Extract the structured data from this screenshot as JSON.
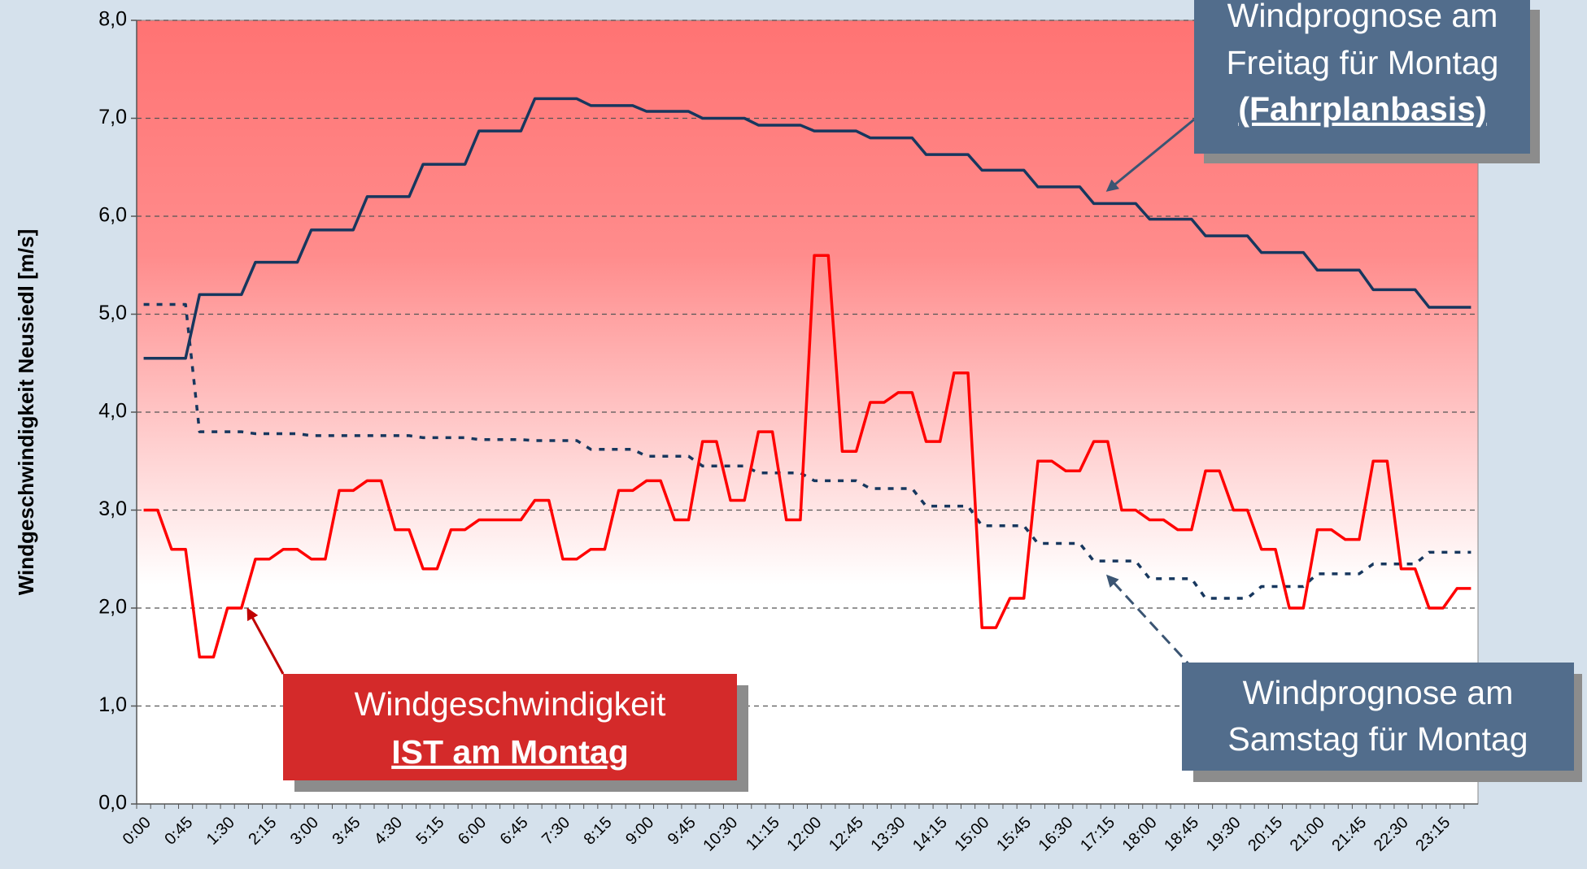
{
  "chart_data": {
    "type": "line",
    "y_label": "Windgeschwindigkeit Neusiedl [m/s]",
    "categories": [
      "0:00",
      null,
      null,
      "0:45",
      null,
      null,
      "1:30",
      null,
      null,
      "2:15",
      null,
      null,
      "3:00",
      null,
      null,
      "3:45",
      null,
      null,
      "4:30",
      null,
      null,
      "5:15",
      null,
      null,
      "6:00",
      null,
      null,
      "6:45",
      null,
      null,
      "7:30",
      null,
      null,
      "8:15",
      null,
      null,
      "9:00",
      null,
      null,
      "9:45",
      null,
      null,
      "10:30",
      null,
      null,
      "11:15",
      null,
      null,
      "12:00",
      null,
      null,
      "12:45",
      null,
      null,
      "13:30",
      null,
      null,
      "14:15",
      null,
      null,
      "15:00",
      null,
      null,
      "15:45",
      null,
      null,
      "16:30",
      null,
      null,
      "17:15",
      null,
      null,
      "18:00",
      null,
      null,
      "18:45",
      null,
      null,
      "19:30",
      null,
      null,
      "20:15",
      null,
      null,
      "21:00",
      null,
      null,
      "21:45",
      null,
      null,
      "22:30",
      null,
      null,
      "23:15",
      null,
      null
    ],
    "series": [
      {
        "color": "#ff0000",
        "style": "solid",
        "values": [
          3.0,
          3.0,
          2.6,
          2.6,
          1.5,
          1.5,
          2.0,
          2.0,
          2.5,
          2.5,
          2.6,
          2.6,
          2.5,
          2.5,
          3.2,
          3.2,
          3.3,
          3.3,
          2.8,
          2.8,
          2.4,
          2.4,
          2.8,
          2.8,
          2.9,
          2.9,
          2.9,
          2.9,
          3.1,
          3.1,
          2.5,
          2.5,
          2.6,
          2.6,
          3.2,
          3.2,
          3.3,
          3.3,
          2.9,
          2.9,
          3.7,
          3.7,
          3.1,
          3.1,
          3.8,
          3.8,
          2.9,
          2.9,
          5.6,
          5.6,
          3.6,
          3.6,
          4.1,
          4.1,
          4.2,
          4.2,
          3.7,
          3.7,
          4.4,
          4.4,
          1.8,
          1.8,
          2.1,
          2.1,
          3.5,
          3.5,
          3.4,
          3.4,
          3.7,
          3.7,
          3.0,
          3.0,
          2.9,
          2.9,
          2.8,
          2.8,
          3.4,
          3.4,
          3.0,
          3.0,
          2.6,
          2.6,
          2.0,
          2.0,
          2.8,
          2.8,
          2.7,
          2.7,
          3.5,
          3.5,
          2.4,
          2.4,
          2.0,
          2.0,
          2.2,
          2.2
        ]
      },
      {
        "color": "#17375e",
        "style": "solid",
        "values": [
          4.55,
          4.55,
          4.55,
          4.55,
          5.2,
          5.2,
          5.2,
          5.2,
          5.53,
          5.53,
          5.53,
          5.53,
          5.86,
          5.86,
          5.86,
          5.86,
          6.2,
          6.2,
          6.2,
          6.2,
          6.53,
          6.53,
          6.53,
          6.53,
          6.87,
          6.87,
          6.87,
          6.87,
          7.2,
          7.2,
          7.2,
          7.2,
          7.13,
          7.13,
          7.13,
          7.13,
          7.07,
          7.07,
          7.07,
          7.07,
          7.0,
          7.0,
          7.0,
          7.0,
          6.93,
          6.93,
          6.93,
          6.93,
          6.87,
          6.87,
          6.87,
          6.87,
          6.8,
          6.8,
          6.8,
          6.8,
          6.63,
          6.63,
          6.63,
          6.63,
          6.47,
          6.47,
          6.47,
          6.47,
          6.3,
          6.3,
          6.3,
          6.3,
          6.13,
          6.13,
          6.13,
          6.13,
          5.97,
          5.97,
          5.97,
          5.97,
          5.8,
          5.8,
          5.8,
          5.8,
          5.63,
          5.63,
          5.63,
          5.63,
          5.45,
          5.45,
          5.45,
          5.45,
          5.25,
          5.25,
          5.25,
          5.25,
          5.07,
          5.07,
          5.07,
          5.07
        ]
      },
      {
        "color": "#17375e",
        "style": "dashed",
        "values": [
          5.1,
          5.1,
          5.1,
          5.1,
          3.8,
          3.8,
          3.8,
          3.8,
          3.78,
          3.78,
          3.78,
          3.78,
          3.76,
          3.76,
          3.76,
          3.76,
          3.76,
          3.76,
          3.76,
          3.76,
          3.74,
          3.74,
          3.74,
          3.74,
          3.72,
          3.72,
          3.72,
          3.72,
          3.71,
          3.71,
          3.71,
          3.71,
          3.62,
          3.62,
          3.62,
          3.62,
          3.55,
          3.55,
          3.55,
          3.55,
          3.45,
          3.45,
          3.45,
          3.45,
          3.38,
          3.38,
          3.38,
          3.38,
          3.3,
          3.3,
          3.3,
          3.3,
          3.22,
          3.22,
          3.22,
          3.22,
          3.04,
          3.04,
          3.04,
          3.04,
          2.84,
          2.84,
          2.84,
          2.84,
          2.66,
          2.66,
          2.66,
          2.66,
          2.48,
          2.48,
          2.48,
          2.48,
          2.3,
          2.3,
          2.3,
          2.3,
          2.1,
          2.1,
          2.1,
          2.1,
          2.22,
          2.22,
          2.22,
          2.22,
          2.35,
          2.35,
          2.35,
          2.35,
          2.45,
          2.45,
          2.45,
          2.45,
          2.57,
          2.57,
          2.57,
          2.57
        ]
      }
    ],
    "ylim": [
      0,
      8
    ],
    "yticks": [
      {
        "value": 0,
        "label": "0,0"
      },
      {
        "value": 1,
        "label": "1,0"
      },
      {
        "value": 2,
        "label": "2,0"
      },
      {
        "value": 3,
        "label": "3,0"
      },
      {
        "value": 4,
        "label": "4,0"
      },
      {
        "value": 5,
        "label": "5,0"
      },
      {
        "value": 6,
        "label": "6,0"
      },
      {
        "value": 7,
        "label": "7,0"
      },
      {
        "value": 8,
        "label": "8,0"
      }
    ],
    "grid": true,
    "annotations": [
      {
        "lines": [
          "Windprognose am",
          "Freitag für Montag",
          "(Fahrplanbasis)"
        ]
      },
      {
        "lines": [
          "Windgeschwindigkeit",
          "IST am Montag"
        ]
      },
      {
        "lines": [
          "Windprognose am",
          "Samstag für Montag"
        ]
      }
    ]
  }
}
